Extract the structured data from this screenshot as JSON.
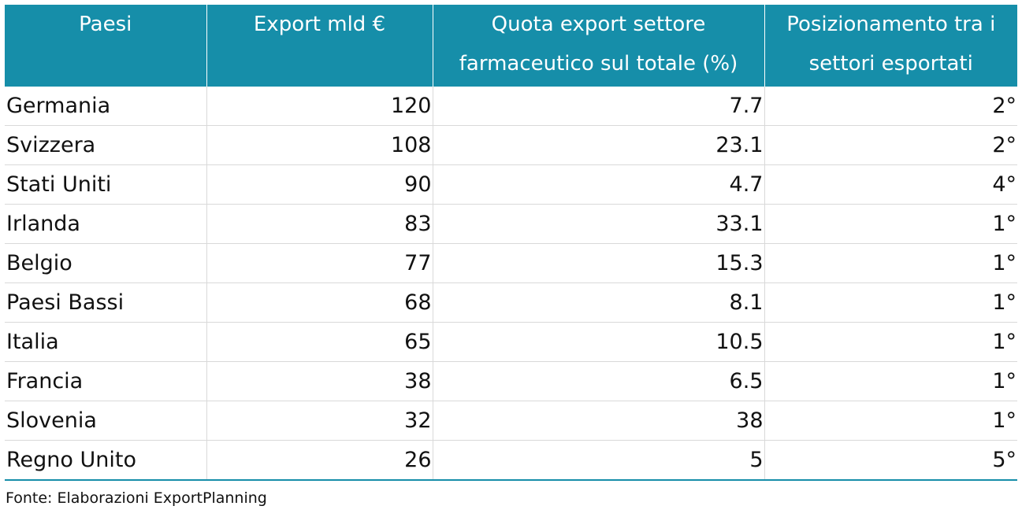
{
  "chart_data": {
    "type": "table",
    "columns": [
      "Paesi",
      "Export mld €",
      "Quota export settore farmaceutico sul totale (%)",
      "Posizionamento tra i settori esportati"
    ],
    "rows": [
      {
        "paese": "Germania",
        "export": "120",
        "quota": "7.7",
        "posizione": "2°"
      },
      {
        "paese": "Svizzera",
        "export": "108",
        "quota": "23.1",
        "posizione": "2°"
      },
      {
        "paese": "Stati Uniti",
        "export": "90",
        "quota": "4.7",
        "posizione": "4°"
      },
      {
        "paese": "Irlanda",
        "export": "83",
        "quota": "33.1",
        "posizione": "1°"
      },
      {
        "paese": "Belgio",
        "export": "77",
        "quota": "15.3",
        "posizione": "1°"
      },
      {
        "paese": "Paesi Bassi",
        "export": "68",
        "quota": "8.1",
        "posizione": "1°"
      },
      {
        "paese": "Italia",
        "export": "65",
        "quota": "10.5",
        "posizione": "1°"
      },
      {
        "paese": "Francia",
        "export": "38",
        "quota": "6.5",
        "posizione": "1°"
      },
      {
        "paese": "Slovenia",
        "export": "32",
        "quota": "38",
        "posizione": "1°"
      },
      {
        "paese": "Regno Unito",
        "export": "26",
        "quota": "5",
        "posizione": "5°"
      }
    ]
  },
  "header": {
    "col1": "Paesi",
    "col2": "Export mld €",
    "col3_line1": "Quota export settore",
    "col3_line2": "farmaceutico sul totale (%)",
    "col4_line1": "Posizionamento tra i",
    "col4_line2": "settori esportati"
  },
  "source": "Fonte: Elaborazioni ExportPlanning",
  "colors": {
    "header_bg": "#168ea9",
    "header_text": "#ffffff",
    "grid": "#d9d9d9"
  }
}
